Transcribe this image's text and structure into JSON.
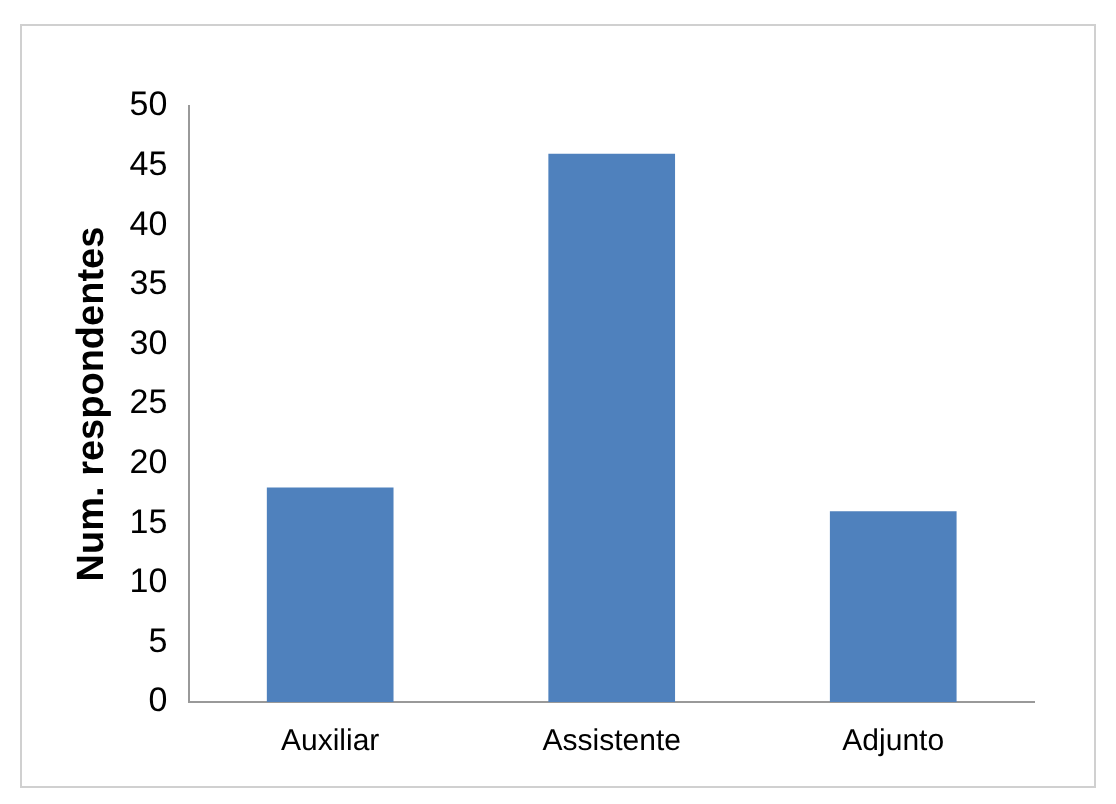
{
  "chart_data": {
    "type": "bar",
    "ylabel": "Num. respondentes",
    "categories": [
      "Auxiliar",
      "Assistente",
      "Adjunto"
    ],
    "values": [
      18,
      46,
      16
    ],
    "color": "#4f81bd",
    "ylim": [
      0,
      50
    ],
    "yticks": [
      0,
      5,
      10,
      15,
      20,
      25,
      30,
      35,
      40,
      45,
      50
    ],
    "grid": false,
    "legend": false
  }
}
